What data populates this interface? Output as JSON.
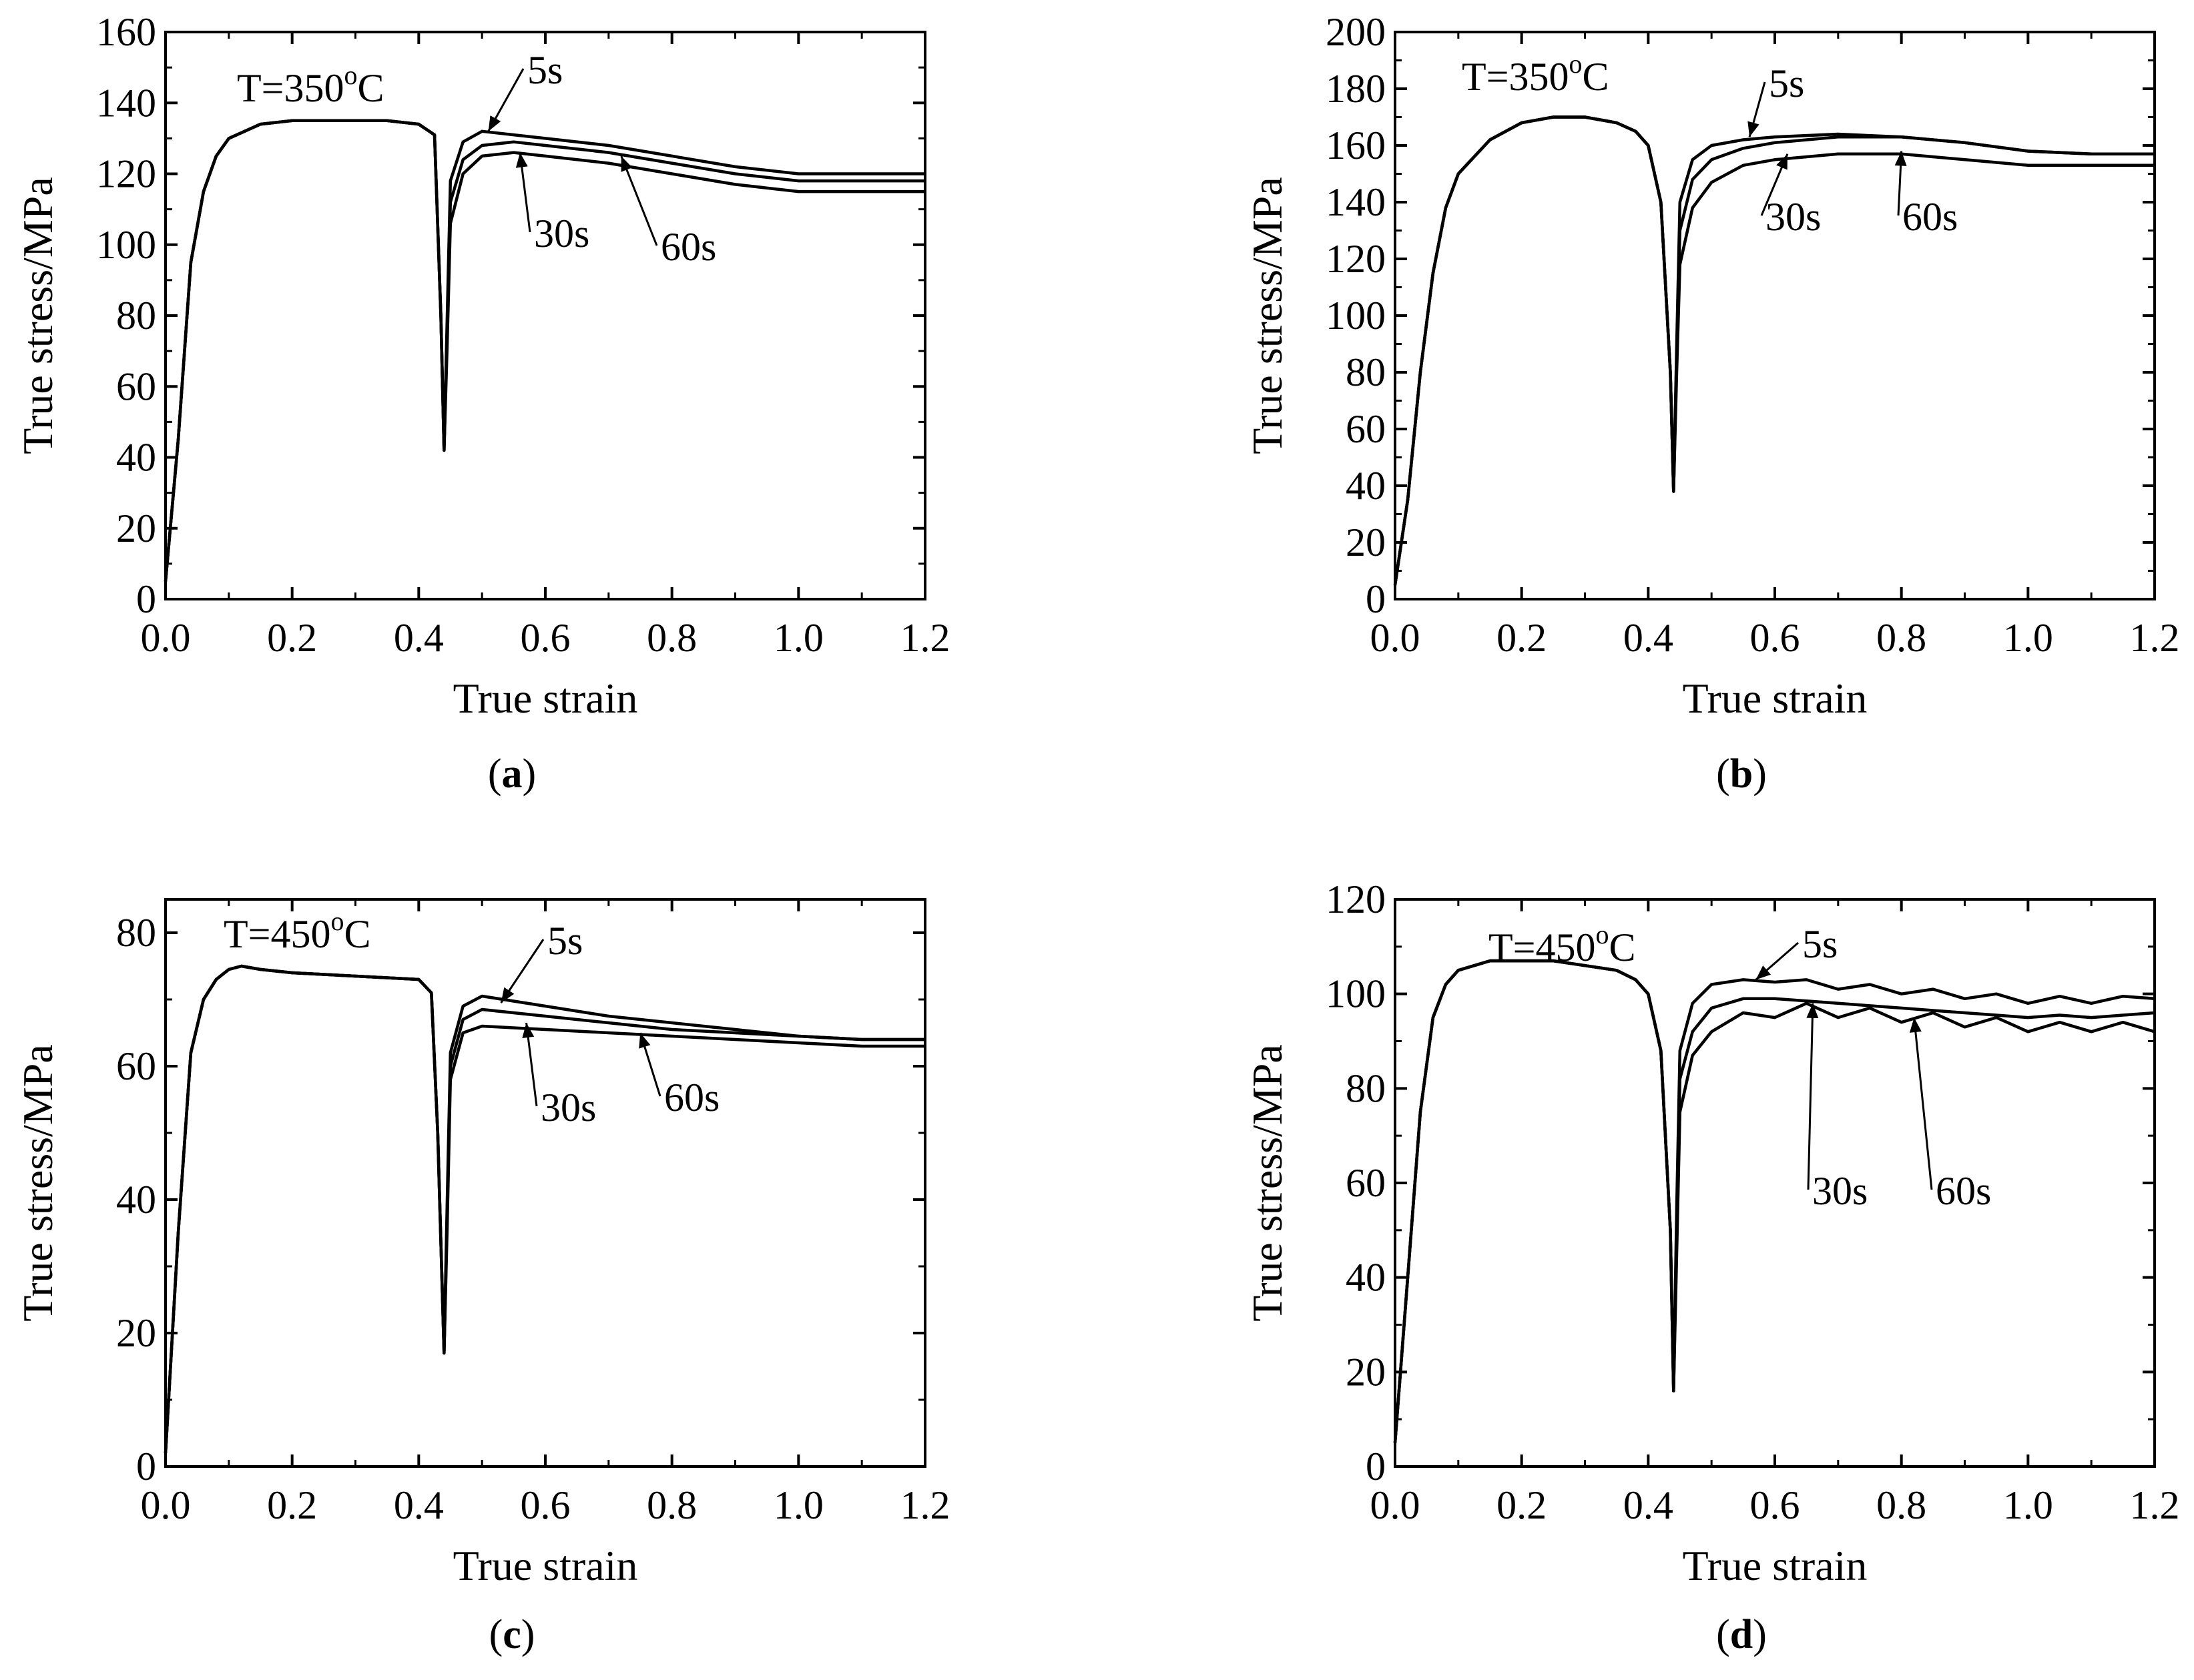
{
  "figure": {
    "panels_count": 4
  },
  "chart_data": [
    {
      "id": "a",
      "type": "line",
      "caption_letter": "a",
      "temperature_label": "T=350°C",
      "temperature_value": "T=350",
      "temperature_sup": "o",
      "temperature_unit": "C",
      "xlabel": "True strain",
      "ylabel": "True stress/MPa",
      "xlim": [
        0,
        1.2
      ],
      "ylim": [
        0,
        160
      ],
      "xticks": [
        "0.0",
        "0.2",
        "0.4",
        "0.6",
        "0.8",
        "1.0",
        "1.2"
      ],
      "yticks": [
        "0",
        "20",
        "40",
        "60",
        "80",
        "100",
        "120",
        "140",
        "160"
      ],
      "series": [
        {
          "name": "5s",
          "label": "5s",
          "x": [
            0,
            0.02,
            0.04,
            0.06,
            0.08,
            0.1,
            0.15,
            0.2,
            0.25,
            0.3,
            0.35,
            0.4,
            0.425,
            0.435,
            0.44,
            0.445,
            0.45,
            0.47,
            0.5,
            0.55,
            0.6,
            0.7,
            0.8,
            0.9,
            1.0,
            1.1,
            1.2
          ],
          "y": [
            5,
            45,
            95,
            115,
            125,
            130,
            134,
            135,
            135,
            135,
            135,
            134,
            131,
            80,
            42,
            80,
            118,
            129,
            132,
            131,
            130,
            128,
            125,
            122,
            120,
            120,
            120
          ]
        },
        {
          "name": "30s",
          "label": "30s",
          "x": [
            0,
            0.02,
            0.04,
            0.06,
            0.08,
            0.1,
            0.15,
            0.2,
            0.25,
            0.3,
            0.35,
            0.4,
            0.425,
            0.435,
            0.44,
            0.445,
            0.45,
            0.47,
            0.5,
            0.55,
            0.6,
            0.7,
            0.8,
            0.9,
            1.0,
            1.1,
            1.2
          ],
          "y": [
            5,
            45,
            95,
            115,
            125,
            130,
            134,
            135,
            135,
            135,
            135,
            134,
            131,
            80,
            42,
            76,
            112,
            124,
            128,
            129,
            128,
            126,
            123,
            120,
            118,
            118,
            118
          ]
        },
        {
          "name": "60s",
          "label": "60s",
          "x": [
            0,
            0.02,
            0.04,
            0.06,
            0.08,
            0.1,
            0.15,
            0.2,
            0.25,
            0.3,
            0.35,
            0.4,
            0.425,
            0.435,
            0.44,
            0.445,
            0.45,
            0.47,
            0.5,
            0.55,
            0.6,
            0.7,
            0.8,
            0.9,
            1.0,
            1.1,
            1.2
          ],
          "y": [
            5,
            45,
            95,
            115,
            125,
            130,
            134,
            135,
            135,
            135,
            135,
            134,
            131,
            80,
            42,
            72,
            106,
            120,
            125,
            126,
            125,
            123,
            120,
            117,
            115,
            115,
            115
          ]
        }
      ]
    },
    {
      "id": "b",
      "type": "line",
      "caption_letter": "b",
      "temperature_label": "T=350°C",
      "temperature_value": "T=350",
      "temperature_sup": "o",
      "temperature_unit": "C",
      "xlabel": "True strain",
      "ylabel": "True stress/MPa",
      "xlim": [
        0,
        1.2
      ],
      "ylim": [
        0,
        200
      ],
      "xticks": [
        "0.0",
        "0.2",
        "0.4",
        "0.6",
        "0.8",
        "1.0",
        "1.2"
      ],
      "yticks": [
        "0",
        "20",
        "40",
        "60",
        "80",
        "100",
        "120",
        "140",
        "160",
        "180",
        "200"
      ],
      "series": [
        {
          "name": "5s",
          "label": "5s",
          "x": [
            0,
            0.02,
            0.04,
            0.06,
            0.08,
            0.1,
            0.15,
            0.2,
            0.25,
            0.3,
            0.35,
            0.38,
            0.4,
            0.42,
            0.435,
            0.44,
            0.445,
            0.45,
            0.47,
            0.5,
            0.55,
            0.6,
            0.7,
            0.8,
            0.9,
            1.0,
            1.1,
            1.2
          ],
          "y": [
            5,
            35,
            80,
            115,
            138,
            150,
            162,
            168,
            170,
            170,
            168,
            165,
            160,
            140,
            80,
            38,
            90,
            140,
            155,
            160,
            162,
            163,
            164,
            163,
            161,
            158,
            157,
            157
          ]
        },
        {
          "name": "30s",
          "label": "30s",
          "x": [
            0,
            0.02,
            0.04,
            0.06,
            0.08,
            0.1,
            0.15,
            0.2,
            0.25,
            0.3,
            0.35,
            0.38,
            0.4,
            0.42,
            0.435,
            0.44,
            0.445,
            0.45,
            0.47,
            0.5,
            0.55,
            0.6,
            0.7,
            0.8,
            0.9,
            1.0,
            1.1,
            1.2
          ],
          "y": [
            5,
            35,
            80,
            115,
            138,
            150,
            162,
            168,
            170,
            170,
            168,
            165,
            160,
            140,
            80,
            38,
            85,
            130,
            148,
            155,
            159,
            161,
            163,
            163,
            161,
            158,
            157,
            157
          ]
        },
        {
          "name": "60s",
          "label": "60s",
          "x": [
            0,
            0.02,
            0.04,
            0.06,
            0.08,
            0.1,
            0.15,
            0.2,
            0.25,
            0.3,
            0.35,
            0.38,
            0.4,
            0.42,
            0.435,
            0.44,
            0.445,
            0.45,
            0.47,
            0.5,
            0.55,
            0.6,
            0.7,
            0.8,
            0.9,
            1.0,
            1.1,
            1.2
          ],
          "y": [
            5,
            35,
            80,
            115,
            138,
            150,
            162,
            168,
            170,
            170,
            168,
            165,
            160,
            140,
            80,
            38,
            80,
            118,
            138,
            147,
            153,
            155,
            157,
            157,
            155,
            153,
            153,
            153
          ]
        }
      ]
    },
    {
      "id": "c",
      "type": "line",
      "caption_letter": "c",
      "temperature_label": "T=450°C",
      "temperature_value": "T=450",
      "temperature_sup": "o",
      "temperature_unit": "C",
      "xlabel": "True strain",
      "ylabel": "True stress/MPa",
      "xlim": [
        0,
        1.2
      ],
      "ylim": [
        0,
        85
      ],
      "xticks": [
        "0.0",
        "0.2",
        "0.4",
        "0.6",
        "0.8",
        "1.0",
        "1.2"
      ],
      "yticks": [
        "0",
        "20",
        "40",
        "60",
        "80"
      ],
      "series": [
        {
          "name": "5s",
          "label": "5s",
          "x": [
            0,
            0.02,
            0.04,
            0.06,
            0.08,
            0.1,
            0.12,
            0.15,
            0.2,
            0.3,
            0.4,
            0.42,
            0.43,
            0.44,
            0.445,
            0.45,
            0.47,
            0.5,
            0.6,
            0.7,
            0.8,
            0.9,
            1.0,
            1.1,
            1.2
          ],
          "y": [
            2,
            35,
            62,
            70,
            73,
            74.5,
            75,
            74.5,
            74,
            73.5,
            73,
            71,
            50,
            17,
            40,
            62,
            69,
            70.5,
            69,
            67.5,
            66.5,
            65.5,
            64.5,
            64,
            64
          ]
        },
        {
          "name": "30s",
          "label": "30s",
          "x": [
            0,
            0.02,
            0.04,
            0.06,
            0.08,
            0.1,
            0.12,
            0.15,
            0.2,
            0.3,
            0.4,
            0.42,
            0.43,
            0.44,
            0.445,
            0.45,
            0.47,
            0.5,
            0.6,
            0.7,
            0.8,
            0.9,
            1.0,
            1.1,
            1.2
          ],
          "y": [
            2,
            35,
            62,
            70,
            73,
            74.5,
            75,
            74.5,
            74,
            73.5,
            73,
            71,
            50,
            17,
            38,
            60,
            67,
            68.5,
            67.5,
            66.5,
            65.5,
            65,
            64.5,
            64,
            64
          ]
        },
        {
          "name": "60s",
          "label": "60s",
          "x": [
            0,
            0.02,
            0.04,
            0.06,
            0.08,
            0.1,
            0.12,
            0.15,
            0.2,
            0.3,
            0.4,
            0.42,
            0.43,
            0.44,
            0.445,
            0.45,
            0.47,
            0.5,
            0.6,
            0.7,
            0.8,
            0.9,
            1.0,
            1.1,
            1.2
          ],
          "y": [
            2,
            35,
            62,
            70,
            73,
            74.5,
            75,
            74.5,
            74,
            73.5,
            73,
            71,
            50,
            17,
            36,
            58,
            65,
            66,
            65.5,
            65,
            64.5,
            64,
            63.5,
            63,
            63
          ]
        }
      ]
    },
    {
      "id": "d",
      "type": "line",
      "caption_letter": "d",
      "temperature_label": "T=450°C",
      "temperature_value": "T=450",
      "temperature_sup": "o",
      "temperature_unit": "C",
      "xlabel": "True strain",
      "ylabel": "True stress/MPa",
      "xlim": [
        0,
        1.2
      ],
      "ylim": [
        0,
        120
      ],
      "xticks": [
        "0.0",
        "0.2",
        "0.4",
        "0.6",
        "0.8",
        "1.0",
        "1.2"
      ],
      "yticks": [
        "0",
        "20",
        "40",
        "60",
        "80",
        "100",
        "120"
      ],
      "series": [
        {
          "name": "5s",
          "label": "5s",
          "x": [
            0,
            0.02,
            0.04,
            0.06,
            0.08,
            0.1,
            0.15,
            0.2,
            0.25,
            0.3,
            0.35,
            0.38,
            0.4,
            0.42,
            0.435,
            0.44,
            0.445,
            0.45,
            0.47,
            0.5,
            0.55,
            0.6,
            0.65,
            0.7,
            0.75,
            0.8,
            0.85,
            0.9,
            0.95,
            1.0,
            1.05,
            1.1,
            1.15,
            1.2
          ],
          "y": [
            5,
            40,
            75,
            95,
            102,
            105,
            107,
            107,
            107,
            106,
            105,
            103,
            100,
            88,
            50,
            16,
            55,
            88,
            98,
            102,
            103,
            102.5,
            103,
            101,
            102,
            100,
            101,
            99,
            100,
            98,
            99.5,
            98,
            99.5,
            99
          ]
        },
        {
          "name": "30s",
          "label": "30s",
          "x": [
            0,
            0.02,
            0.04,
            0.06,
            0.08,
            0.1,
            0.15,
            0.2,
            0.25,
            0.3,
            0.35,
            0.38,
            0.4,
            0.42,
            0.435,
            0.44,
            0.445,
            0.45,
            0.47,
            0.5,
            0.55,
            0.6,
            0.65,
            0.7,
            0.75,
            0.8,
            0.85,
            0.9,
            0.95,
            1.0,
            1.05,
            1.1,
            1.15,
            1.2
          ],
          "y": [
            5,
            40,
            75,
            95,
            102,
            105,
            107,
            107,
            107,
            106,
            105,
            103,
            100,
            88,
            50,
            16,
            50,
            82,
            92,
            97,
            99,
            99,
            98.5,
            98,
            97.5,
            97,
            96.5,
            96,
            95.5,
            95,
            95.5,
            95,
            95.5,
            96
          ]
        },
        {
          "name": "60s",
          "label": "60s",
          "x": [
            0,
            0.02,
            0.04,
            0.06,
            0.08,
            0.1,
            0.15,
            0.2,
            0.25,
            0.3,
            0.35,
            0.38,
            0.4,
            0.42,
            0.435,
            0.44,
            0.445,
            0.45,
            0.47,
            0.5,
            0.55,
            0.6,
            0.65,
            0.7,
            0.75,
            0.8,
            0.85,
            0.9,
            0.95,
            1.0,
            1.05,
            1.1,
            1.15,
            1.2
          ],
          "y": [
            5,
            40,
            75,
            95,
            102,
            105,
            107,
            107,
            107,
            106,
            105,
            103,
            100,
            88,
            50,
            16,
            45,
            75,
            87,
            92,
            96,
            95,
            98,
            95,
            97,
            94,
            96,
            93,
            95,
            92,
            94,
            92,
            94,
            92
          ]
        }
      ]
    }
  ]
}
